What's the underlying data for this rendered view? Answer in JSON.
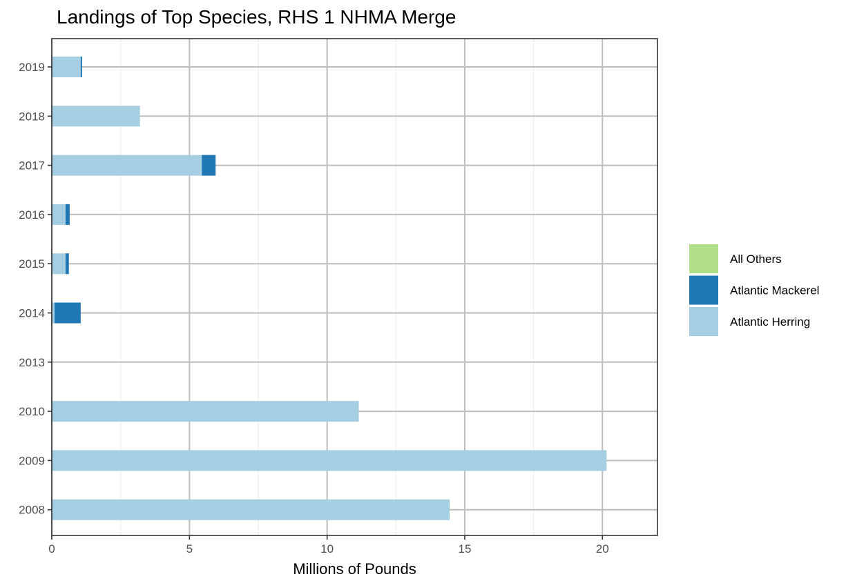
{
  "chart_data": {
    "type": "bar",
    "orientation": "horizontal",
    "stacked": true,
    "title": "Landings of Top Species, RHS 1 NHMA Merge",
    "xlabel": "Millions of Pounds",
    "ylabel": "",
    "xlim": [
      0,
      22
    ],
    "x_ticks": [
      "0",
      "5",
      "10",
      "15",
      "20"
    ],
    "categories": [
      "2019",
      "2018",
      "2017",
      "2016",
      "2015",
      "2014",
      "2013",
      "2010",
      "2009",
      "2008"
    ],
    "series": [
      {
        "name": "Atlantic Herring",
        "color": "#a6cee3",
        "values": [
          1.05,
          3.2,
          5.45,
          0.5,
          0.5,
          0.1,
          0,
          11.15,
          20.15,
          14.45
        ]
      },
      {
        "name": "Atlantic Mackerel",
        "color": "#1f78b4",
        "values": [
          0.05,
          0,
          0.5,
          0.15,
          0.12,
          0.95,
          0,
          0,
          0,
          0
        ]
      },
      {
        "name": "All Others",
        "color": "#b2df8a",
        "values": [
          0,
          0,
          0,
          0,
          0,
          0,
          0,
          0,
          0,
          0
        ]
      }
    ],
    "legend": {
      "placement": "right",
      "entries": [
        "All Others",
        "Atlantic Mackerel",
        "Atlantic Herring"
      ]
    },
    "grid": true
  }
}
